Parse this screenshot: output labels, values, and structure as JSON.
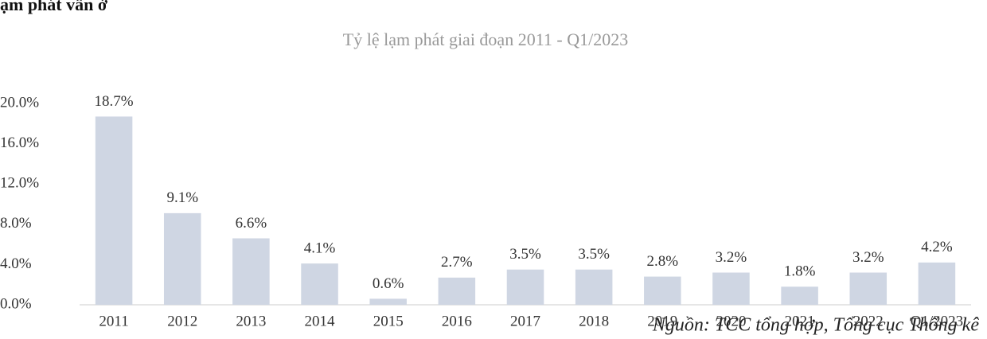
{
  "heading": "ạm phát vẫn ở",
  "chart_data": {
    "type": "bar",
    "title": "Tỷ lệ lạm phát giai đoạn 2011 - Q1/2023",
    "categories": [
      "2011",
      "2012",
      "2013",
      "2014",
      "2015",
      "2016",
      "2017",
      "2018",
      "2019",
      "2020",
      "2021",
      "2022",
      "Q1/2023"
    ],
    "values": [
      18.7,
      9.1,
      6.6,
      4.1,
      0.6,
      2.7,
      3.5,
      3.5,
      2.8,
      3.2,
      1.8,
      3.2,
      4.2
    ],
    "value_labels": [
      "18.7%",
      "9.1%",
      "6.6%",
      "4.1%",
      "0.6%",
      "2.7%",
      "3.5%",
      "3.5%",
      "2.8%",
      "3.2%",
      "1.8%",
      "3.2%",
      "4.2%"
    ],
    "color": "#cfd6e3",
    "ylim": [
      0,
      20
    ],
    "yticks": [
      {
        "value": 0,
        "label": "0.0%"
      },
      {
        "value": 4,
        "label": "4.0%"
      },
      {
        "value": 8,
        "label": "8.0%"
      },
      {
        "value": 12,
        "label": "12.0%"
      },
      {
        "value": 16,
        "label": "16.0%"
      },
      {
        "value": 20,
        "label": "20.0%"
      }
    ],
    "grid": false,
    "source": "Nguồn: TCC tổng hợp, Tổng cục Thống kê"
  }
}
